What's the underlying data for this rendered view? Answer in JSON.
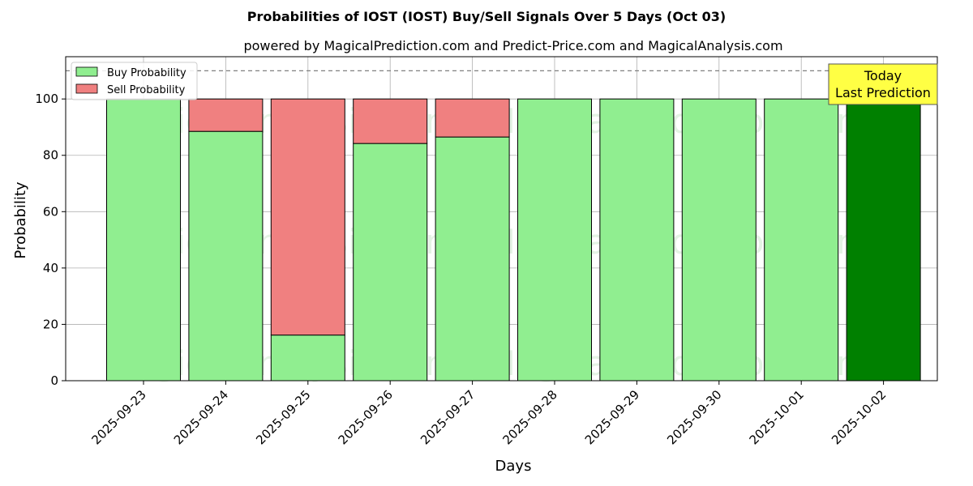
{
  "chart_data": {
    "type": "bar",
    "title": "Probabilities of IOST (IOST) Buy/Sell Signals Over 5 Days (Oct 03)",
    "subtitle": "powered by MagicalPrediction.com and Predict-Price.com and MagicalAnalysis.com",
    "xlabel": "Days",
    "ylabel": "Probability",
    "ylim": [
      0,
      115
    ],
    "yticks": [
      0,
      20,
      40,
      60,
      80,
      100
    ],
    "categories": [
      "2025-09-23",
      "2025-09-24",
      "2025-09-25",
      "2025-09-26",
      "2025-09-27",
      "2025-09-28",
      "2025-09-29",
      "2025-09-30",
      "2025-10-01",
      "2025-10-02"
    ],
    "series": [
      {
        "name": "Buy Probability",
        "color": "#90ee90",
        "values": [
          100,
          88.5,
          16.2,
          84.2,
          86.5,
          100,
          100,
          100,
          100,
          100
        ]
      },
      {
        "name": "Sell Probability",
        "color": "#f08080",
        "values": [
          0,
          11.5,
          83.8,
          15.8,
          13.5,
          0,
          0,
          0,
          0,
          0
        ]
      }
    ],
    "highlight": {
      "index": 9,
      "color": "#008000"
    },
    "reference_line": {
      "y": 110,
      "style": "dashed",
      "color": "#808080"
    },
    "annotation": {
      "lines": [
        "Today",
        "Last Prediction"
      ],
      "background": "#ffff44"
    },
    "legend": {
      "position": "top-left"
    },
    "grid": true,
    "watermarks": [
      "MagicalAnalysis.com",
      "MagicalPrediction.com"
    ]
  }
}
